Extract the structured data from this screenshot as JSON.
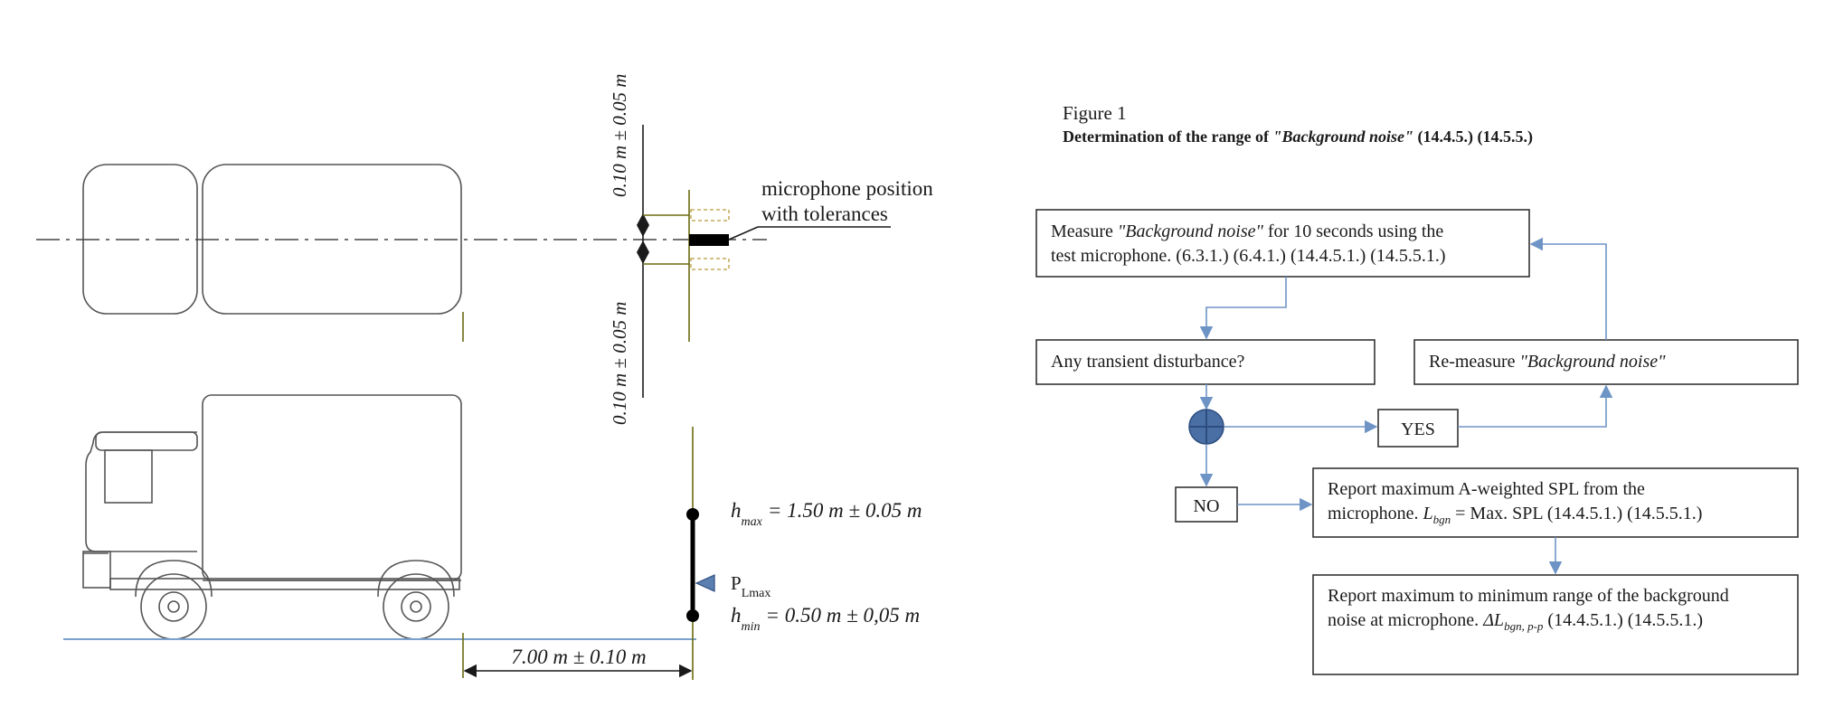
{
  "colors": {
    "flow": "#6e94c6",
    "ground": "#7aa0cc",
    "pole": "#6b6b12",
    "tolerance": "#b89a3a",
    "connector": "#4a6fa5"
  },
  "left": {
    "tolerance_top": "0.10 m ± 0.05 m",
    "tolerance_bottom": "0.10 m ± 0.05 m",
    "mic_label_line1": "microphone position",
    "mic_label_line2": "with tolerances",
    "hmax_sub": "max",
    "hmax_text": "= 1.50 m ± 0.05 m",
    "plmax": "P",
    "plmax_sub": "Lmax",
    "hmin_sub": "min",
    "hmin_text": "= 0.50 m ± 0,05 m",
    "distance": "7.00 m ± 0.10 m"
  },
  "right": {
    "figure_label": "Figure 1",
    "title_pre": "Determination of the range of ",
    "title_ital": "\"Background noise\"",
    "title_post": " (14.4.5.) (14.5.5.)",
    "box1_l1_pre": "Measure ",
    "box1_l1_ital": "\"Background noise\"",
    "box1_l1_post": " for 10 seconds using the",
    "box1_l2": "test microphone. (6.3.1.) (6.4.1.) (14.4.5.1.) (14.5.5.1.)",
    "box2": "Any transient disturbance?",
    "box3_pre": "Re-measure ",
    "box3_ital": "\"Background noise\"",
    "yes": "YES",
    "no": "NO",
    "box4_l1": "Report maximum A-weighted SPL from the",
    "box4_l2_pre": "microphone.  ",
    "box4_l2_sym": "L",
    "box4_l2_sub": "bgn",
    "box4_l2_post": " = Max. SPL  (14.4.5.1.) (14.5.5.1.)",
    "box5_l1": "Report maximum to minimum range of the background",
    "box5_l2_pre": "noise at microphone. ",
    "box5_l2_sym": "ΔL",
    "box5_l2_sub": "bgn, p-p",
    "box5_l2_post": " (14.4.5.1.) (14.5.5.1.)"
  }
}
